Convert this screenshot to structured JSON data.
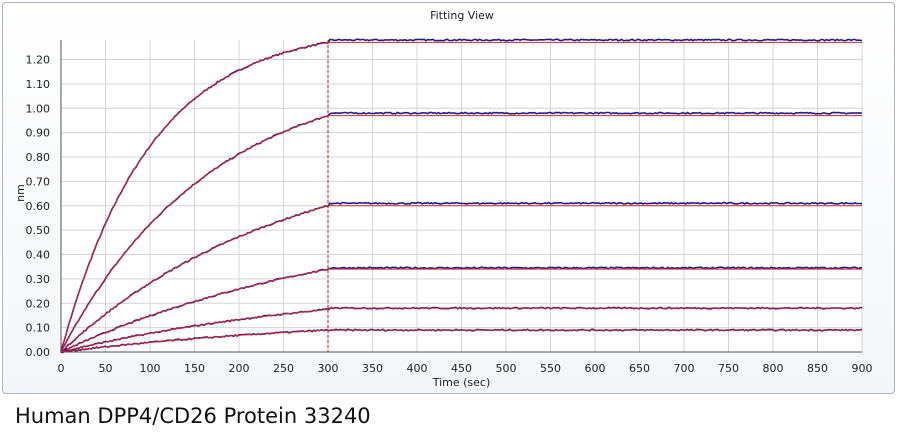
{
  "chart_data": {
    "type": "line",
    "title": "Fitting View",
    "xlabel": "Time (sec)",
    "ylabel": "nm",
    "xlim": [
      0,
      900
    ],
    "ylim": [
      0,
      1.28
    ],
    "xticks": [
      0,
      50,
      100,
      150,
      200,
      250,
      300,
      350,
      400,
      450,
      500,
      550,
      600,
      650,
      700,
      750,
      800,
      850,
      900
    ],
    "yticks": [
      "0.00",
      "0.10",
      "0.20",
      "0.30",
      "0.40",
      "0.50",
      "0.60",
      "0.70",
      "0.80",
      "0.90",
      "1.00",
      "1.10",
      "1.20"
    ],
    "grid": true,
    "dissociation_start": 300,
    "colors": {
      "data": "#1f1f8c",
      "fit": "#e0202a",
      "marker": "#c0151f",
      "grid": "#d4d4d4"
    },
    "series": [
      {
        "plateau_association": 1.27,
        "dissociation_data": 1.28,
        "dissociation_fit": 1.27,
        "curvature": 0.01
      },
      {
        "plateau_association": 0.97,
        "dissociation_data": 0.98,
        "dissociation_fit": 0.97,
        "curvature": 0.006
      },
      {
        "plateau_association": 0.6,
        "dissociation_data": 0.61,
        "dissociation_fit": 0.6,
        "curvature": 0.004
      },
      {
        "plateau_association": 0.34,
        "dissociation_data": 0.345,
        "dissociation_fit": 0.34,
        "curvature": 0.003
      },
      {
        "plateau_association": 0.175,
        "dissociation_data": 0.18,
        "dissociation_fit": 0.18,
        "curvature": 0.003
      },
      {
        "plateau_association": 0.09,
        "dissociation_data": 0.09,
        "dissociation_fit": 0.09,
        "curvature": 0.003
      }
    ]
  },
  "caption": "Human DPP4/CD26 Protein 33240"
}
